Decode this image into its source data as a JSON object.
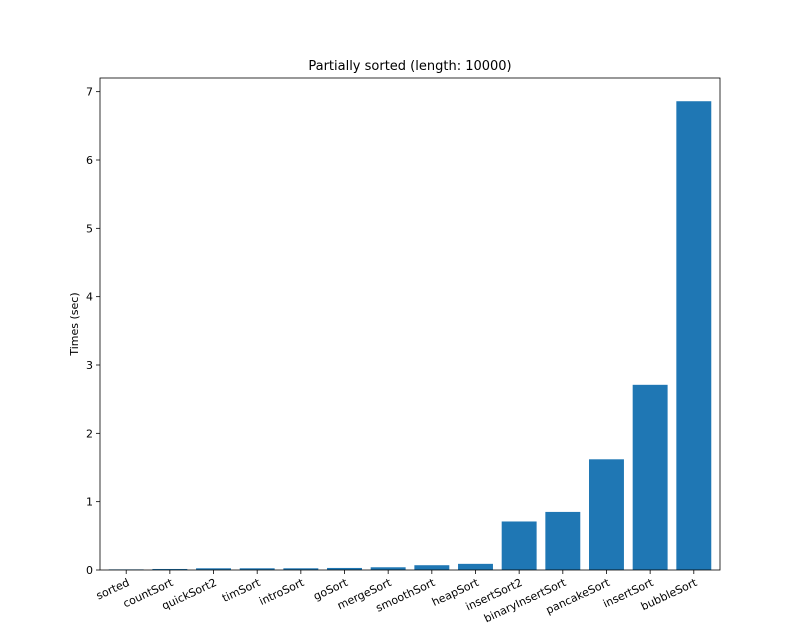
{
  "chart_data": {
    "type": "bar",
    "title": "Partially sorted (length: 10000)",
    "xlabel": "",
    "ylabel": "Times (sec)",
    "categories": [
      "sorted",
      "countSort",
      "quickSort2",
      "timSort",
      "introSort",
      "goSort",
      "mergeSort",
      "smoothSort",
      "heapSort",
      "insertSort2",
      "binaryInsertSort",
      "pancakeSort",
      "insertSort",
      "bubbleSort"
    ],
    "values": [
      0.002,
      0.015,
      0.025,
      0.025,
      0.025,
      0.03,
      0.04,
      0.07,
      0.09,
      0.71,
      0.85,
      1.62,
      2.71,
      6.86
    ],
    "ylim": [
      0,
      7.2
    ],
    "yticks": [
      0,
      1,
      2,
      3,
      4,
      5,
      6,
      7
    ],
    "bar_color": "#1f77b4",
    "grid": false,
    "legend": "none",
    "xtick_rotation_deg": -25
  }
}
